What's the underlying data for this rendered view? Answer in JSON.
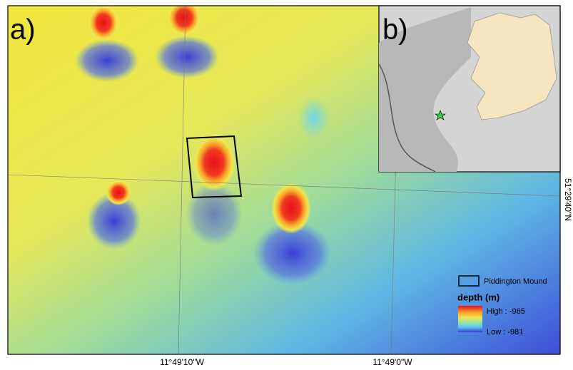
{
  "panels": {
    "a": {
      "label": "a)"
    },
    "b": {
      "label": "b)"
    }
  },
  "axes": {
    "lon_labels": [
      "11°49'10\"W",
      "11°49'0\"W"
    ],
    "lat_label": "51°29'40\"N"
  },
  "legend": {
    "box_label": "Piddington Mound",
    "title": "depth (m)",
    "high": "High : -965",
    "low": "Low : -981"
  }
}
